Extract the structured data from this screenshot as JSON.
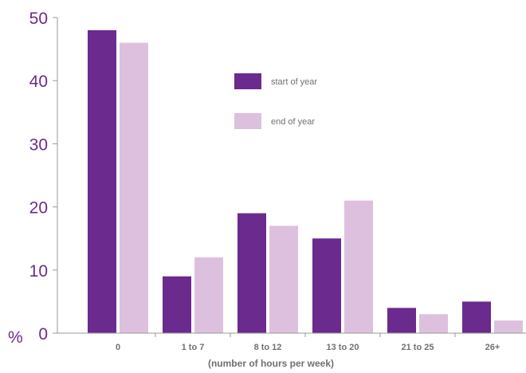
{
  "chart_data": {
    "type": "bar",
    "categories": [
      "0",
      "1 to 7",
      "8 to 12",
      "13 to 20",
      "21 to 25",
      "26+"
    ],
    "series": [
      {
        "name": "start of year",
        "color": "#6b2a8e",
        "values": [
          48,
          9,
          19,
          15,
          4,
          5
        ]
      },
      {
        "name": "end of year",
        "color": "#ddc0de",
        "values": [
          46,
          12,
          17,
          21,
          3,
          2
        ]
      }
    ],
    "ylabel": "%",
    "xlabel": "(number of hours per week)",
    "ylim": [
      0,
      50
    ],
    "yticks": [
      0,
      10,
      20,
      30,
      40,
      50
    ],
    "grid": false,
    "legend_position": "top-center"
  }
}
